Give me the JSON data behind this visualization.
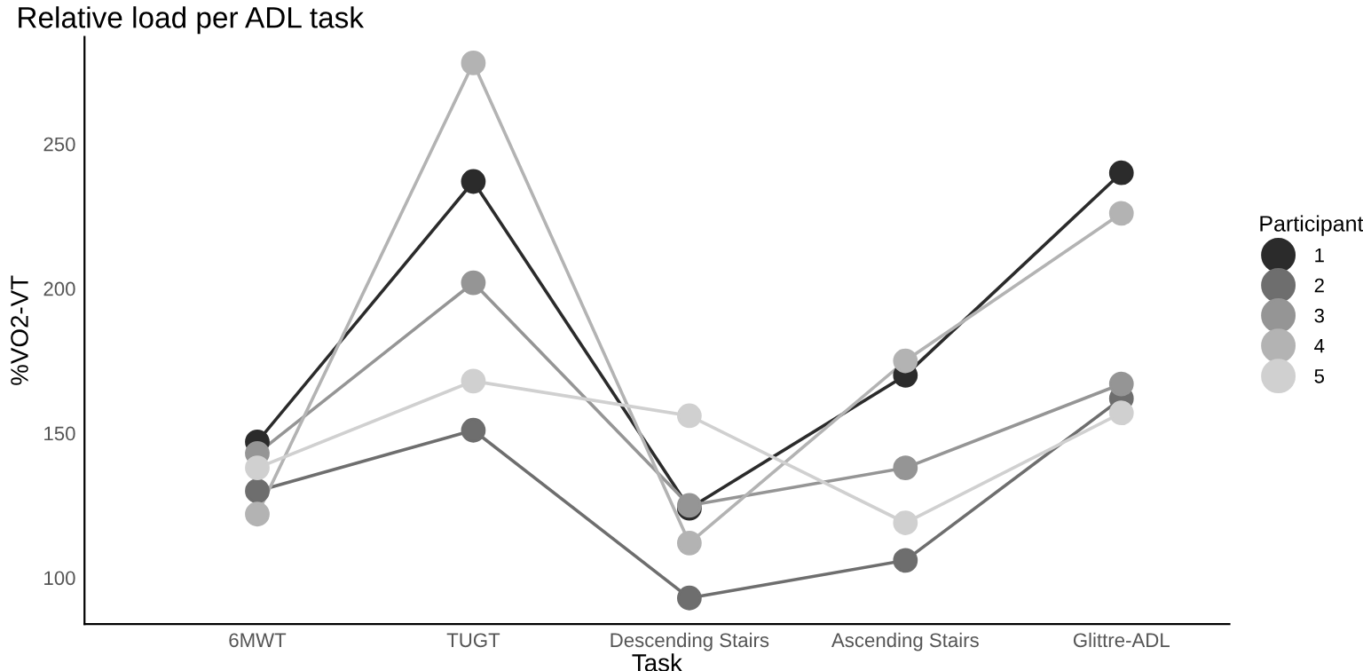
{
  "chart_data": {
    "type": "line",
    "title": "Relative load per ADL task",
    "xlabel": "Task",
    "ylabel": "%VO2-VT",
    "legend_title": "Participant",
    "legend": "right",
    "marker": "circle",
    "line_style": "solid",
    "grid": false,
    "categories": [
      "6MWT",
      "TUGT",
      "Descending Stairs",
      "Ascending Stairs",
      "Glittre-ADL"
    ],
    "ylim": [
      84,
      287
    ],
    "yticks": [
      100,
      150,
      200,
      250
    ],
    "series": [
      {
        "name": "1",
        "color": "#2b2b2b",
        "values": [
          147,
          237,
          124,
          170,
          240
        ]
      },
      {
        "name": "2",
        "color": "#6e6e6e",
        "values": [
          130,
          151,
          93,
          106,
          162
        ]
      },
      {
        "name": "3",
        "color": "#959595",
        "values": [
          143,
          202,
          125,
          138,
          167
        ]
      },
      {
        "name": "4",
        "color": "#b3b3b3",
        "values": [
          122,
          278,
          112,
          175,
          226
        ]
      },
      {
        "name": "5",
        "color": "#d0d0d0",
        "values": [
          138,
          168,
          156,
          119,
          157
        ]
      }
    ]
  }
}
